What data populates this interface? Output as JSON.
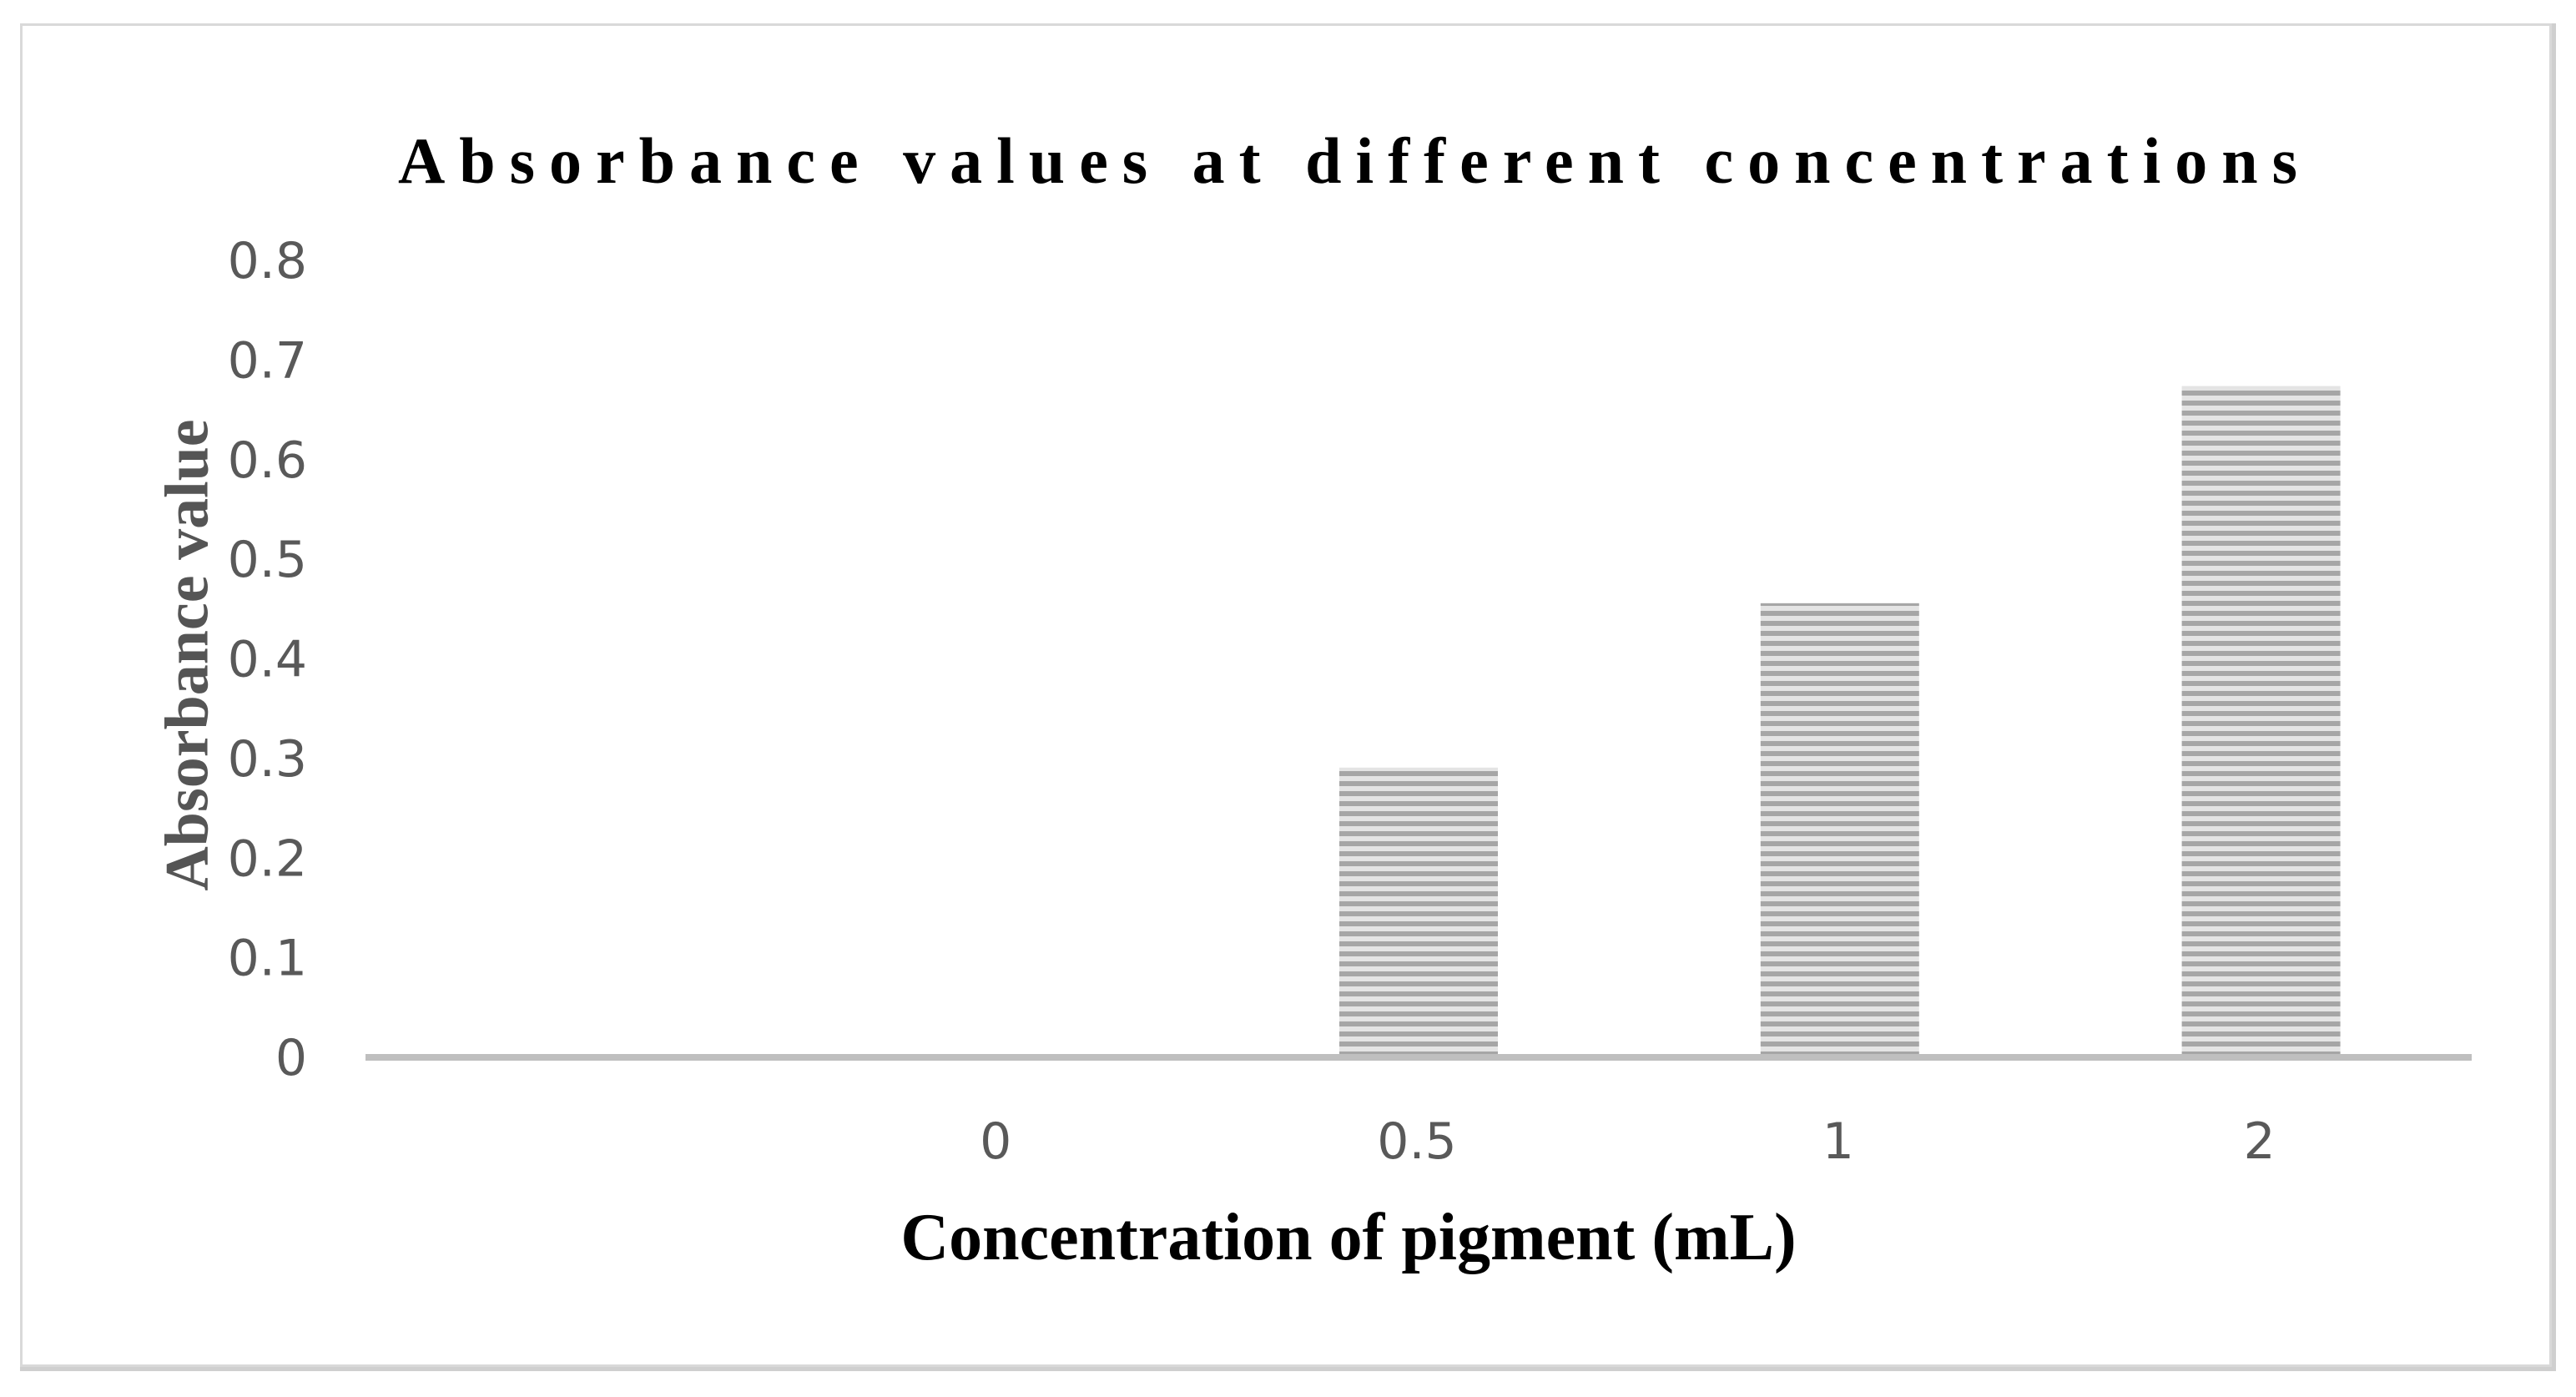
{
  "chart_data": {
    "type": "bar",
    "title": "Absorbance values at different concentrations",
    "xlabel": "Concentration of pigment (mL)",
    "ylabel": "Absorbance value",
    "categories": [
      "0",
      "0.5",
      "1",
      "2"
    ],
    "values": [
      0,
      0.29,
      0.455,
      0.673
    ],
    "ylim": [
      0,
      0.8
    ],
    "yticks": [
      "0",
      "0.1",
      "0.2",
      "0.3",
      "0.4",
      "0.5",
      "0.6",
      "0.7",
      "0.8"
    ],
    "grid": false,
    "legend": "none",
    "bar_fill": "horizontal-stripes",
    "colors": {
      "bar_light": "#e4e4e4",
      "bar_dark": "#a6a6a6",
      "axis_line": "#bfbfbf",
      "tick_text": "#595959",
      "y_title_text": "#555555",
      "title_text": "#000000"
    }
  }
}
